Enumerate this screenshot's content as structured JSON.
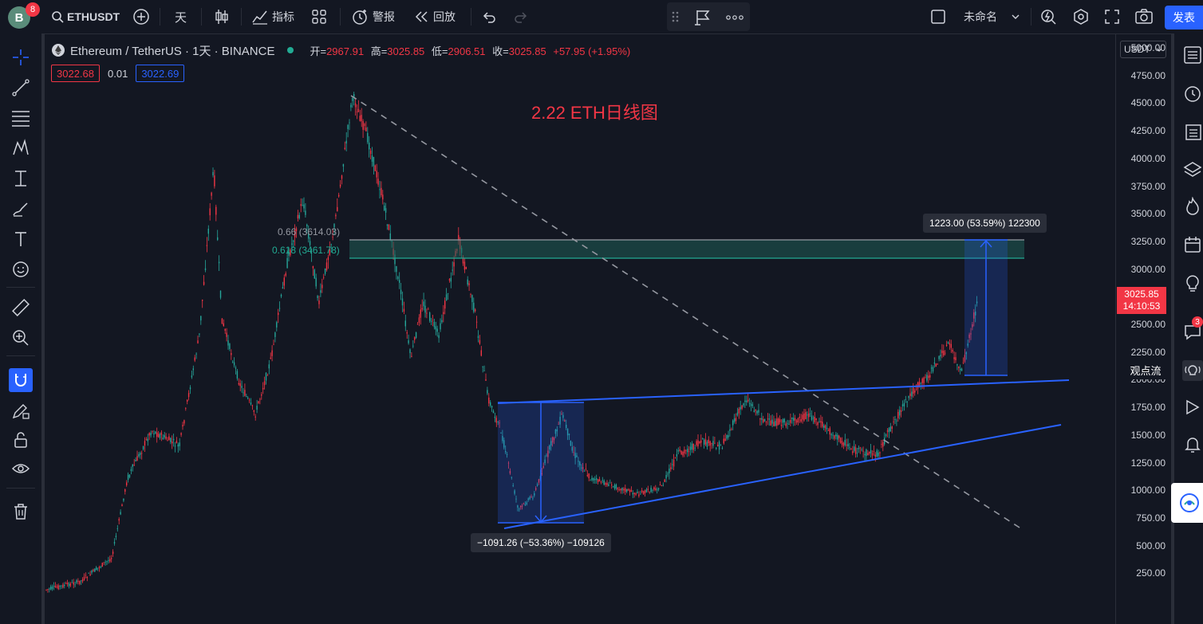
{
  "topbar": {
    "avatar_letter": "B",
    "avatar_badge": "8",
    "symbol": "ETHUSDT",
    "interval": "天",
    "indicators": "指标",
    "alert": "警报",
    "replay": "回放",
    "layout_name": "未命名",
    "publish": "发表"
  },
  "legend": {
    "symbol_title": "Ethereum / TetherUS · 1天 · BINANCE",
    "open_label": "开=",
    "open": "2967.91",
    "high_label": "高=",
    "high": "3025.85",
    "low_label": "低=",
    "low": "2906.51",
    "close_label": "收=",
    "close": "3025.85",
    "change": "+57.95 (+1.95%)",
    "sell_price": "3022.68",
    "spread": "0.01",
    "buy_price": "3022.69"
  },
  "price_axis": {
    "currency": "USDT",
    "ticks": [
      "5000.00",
      "4750.00",
      "4500.00",
      "4250.00",
      "4000.00",
      "3750.00",
      "3500.00",
      "3250.00",
      "3000.00",
      "2750.00",
      "2500.00",
      "2250.00",
      "2000.00",
      "1750.00",
      "1500.00",
      "1250.00",
      "1000.00",
      "750.00",
      "500.00",
      "250.00"
    ],
    "current_price": "3025.85",
    "countdown": "14:10:53"
  },
  "annotations": {
    "title": "2.22 ETH日线图",
    "fib_066": "0.66 (3614.03)",
    "fib_0618": "0.618 (3461.78)",
    "measure_down": "−1091.26 (−53.36%) −109126",
    "measure_up": "1223.00 (53.59%) 122300"
  },
  "rightbar": {
    "idea_stream": "观点流",
    "chat_badge": "3"
  },
  "colors": {
    "up": "#26a69a",
    "down": "#f23645",
    "accent": "#2962ff",
    "trend": "#2962ff",
    "bg": "#131722"
  }
}
